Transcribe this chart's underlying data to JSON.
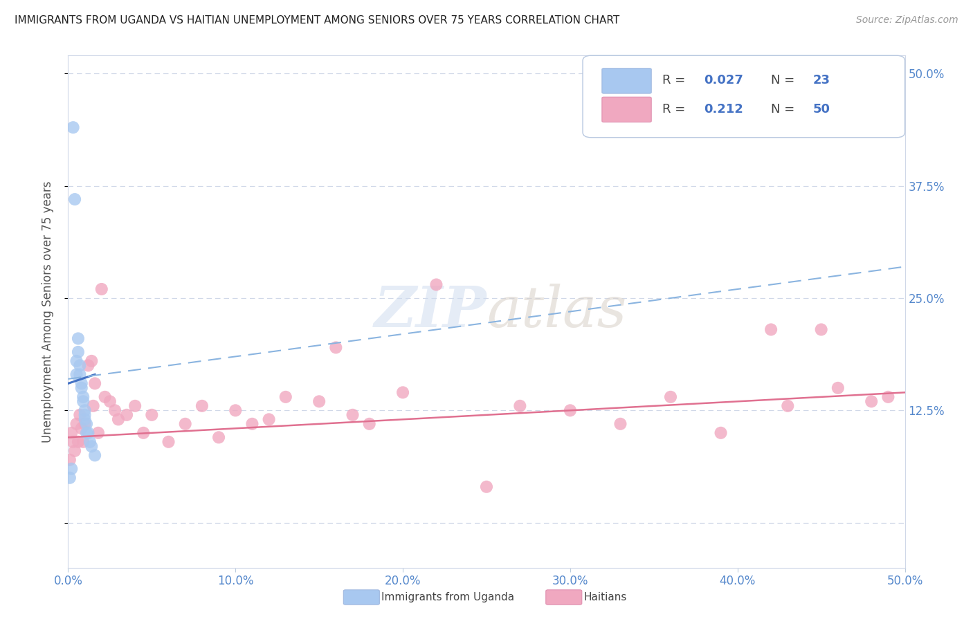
{
  "title": "IMMIGRANTS FROM UGANDA VS HAITIAN UNEMPLOYMENT AMONG SENIORS OVER 75 YEARS CORRELATION CHART",
  "source": "Source: ZipAtlas.com",
  "ylabel": "Unemployment Among Seniors over 75 years",
  "xlim": [
    0.0,
    0.5
  ],
  "ylim": [
    -0.05,
    0.52
  ],
  "xticks": [
    0.0,
    0.1,
    0.2,
    0.3,
    0.4,
    0.5
  ],
  "xtick_labels": [
    "0.0%",
    "10.0%",
    "20.0%",
    "30.0%",
    "40.0%",
    "50.0%"
  ],
  "ytick_vals": [
    0.0,
    0.125,
    0.25,
    0.375,
    0.5
  ],
  "ytick_labels_right": [
    "12.5%",
    "25.0%",
    "37.5%",
    "50.0%",
    ""
  ],
  "ytick_right_vals": [
    0.125,
    0.25,
    0.375,
    0.5
  ],
  "uganda_x": [
    0.001,
    0.002,
    0.003,
    0.004,
    0.005,
    0.005,
    0.006,
    0.006,
    0.007,
    0.007,
    0.008,
    0.008,
    0.009,
    0.009,
    0.01,
    0.01,
    0.01,
    0.011,
    0.011,
    0.012,
    0.013,
    0.014,
    0.016
  ],
  "uganda_y": [
    0.05,
    0.06,
    0.44,
    0.36,
    0.18,
    0.165,
    0.205,
    0.19,
    0.175,
    0.165,
    0.155,
    0.15,
    0.14,
    0.135,
    0.125,
    0.12,
    0.115,
    0.11,
    0.1,
    0.1,
    0.09,
    0.085,
    0.075
  ],
  "haitian_x": [
    0.001,
    0.002,
    0.003,
    0.004,
    0.005,
    0.006,
    0.007,
    0.008,
    0.009,
    0.01,
    0.012,
    0.014,
    0.015,
    0.016,
    0.018,
    0.02,
    0.022,
    0.025,
    0.028,
    0.03,
    0.035,
    0.04,
    0.045,
    0.05,
    0.06,
    0.07,
    0.08,
    0.09,
    0.1,
    0.11,
    0.12,
    0.13,
    0.15,
    0.16,
    0.17,
    0.18,
    0.2,
    0.22,
    0.25,
    0.27,
    0.3,
    0.33,
    0.36,
    0.39,
    0.42,
    0.43,
    0.45,
    0.46,
    0.48,
    0.49
  ],
  "haitian_y": [
    0.07,
    0.1,
    0.09,
    0.08,
    0.11,
    0.09,
    0.12,
    0.105,
    0.09,
    0.11,
    0.175,
    0.18,
    0.13,
    0.155,
    0.1,
    0.26,
    0.14,
    0.135,
    0.125,
    0.115,
    0.12,
    0.13,
    0.1,
    0.12,
    0.09,
    0.11,
    0.13,
    0.095,
    0.125,
    0.11,
    0.115,
    0.14,
    0.135,
    0.195,
    0.12,
    0.11,
    0.145,
    0.265,
    0.04,
    0.13,
    0.125,
    0.11,
    0.14,
    0.1,
    0.215,
    0.13,
    0.215,
    0.15,
    0.135,
    0.14
  ],
  "uganda_color": "#a8c8f0",
  "haitian_color": "#f0a8c0",
  "uganda_line_color": "#4472c4",
  "haitian_line_color": "#e07090",
  "dashed_color": "#8ab4e0",
  "watermark": "ZIPatlas",
  "background_color": "#ffffff",
  "grid_color": "#d0d8e8",
  "uganda_trend_x": [
    0.0,
    0.016
  ],
  "uganda_trend_y": [
    0.155,
    0.165
  ],
  "haitian_trend_x": [
    0.0,
    0.5
  ],
  "haitian_trend_y": [
    0.095,
    0.145
  ],
  "dashed_trend_x": [
    0.0,
    0.5
  ],
  "dashed_trend_y": [
    0.16,
    0.285
  ],
  "legend_r1": "0.027",
  "legend_n1": "23",
  "legend_r2": "0.212",
  "legend_n2": "50"
}
